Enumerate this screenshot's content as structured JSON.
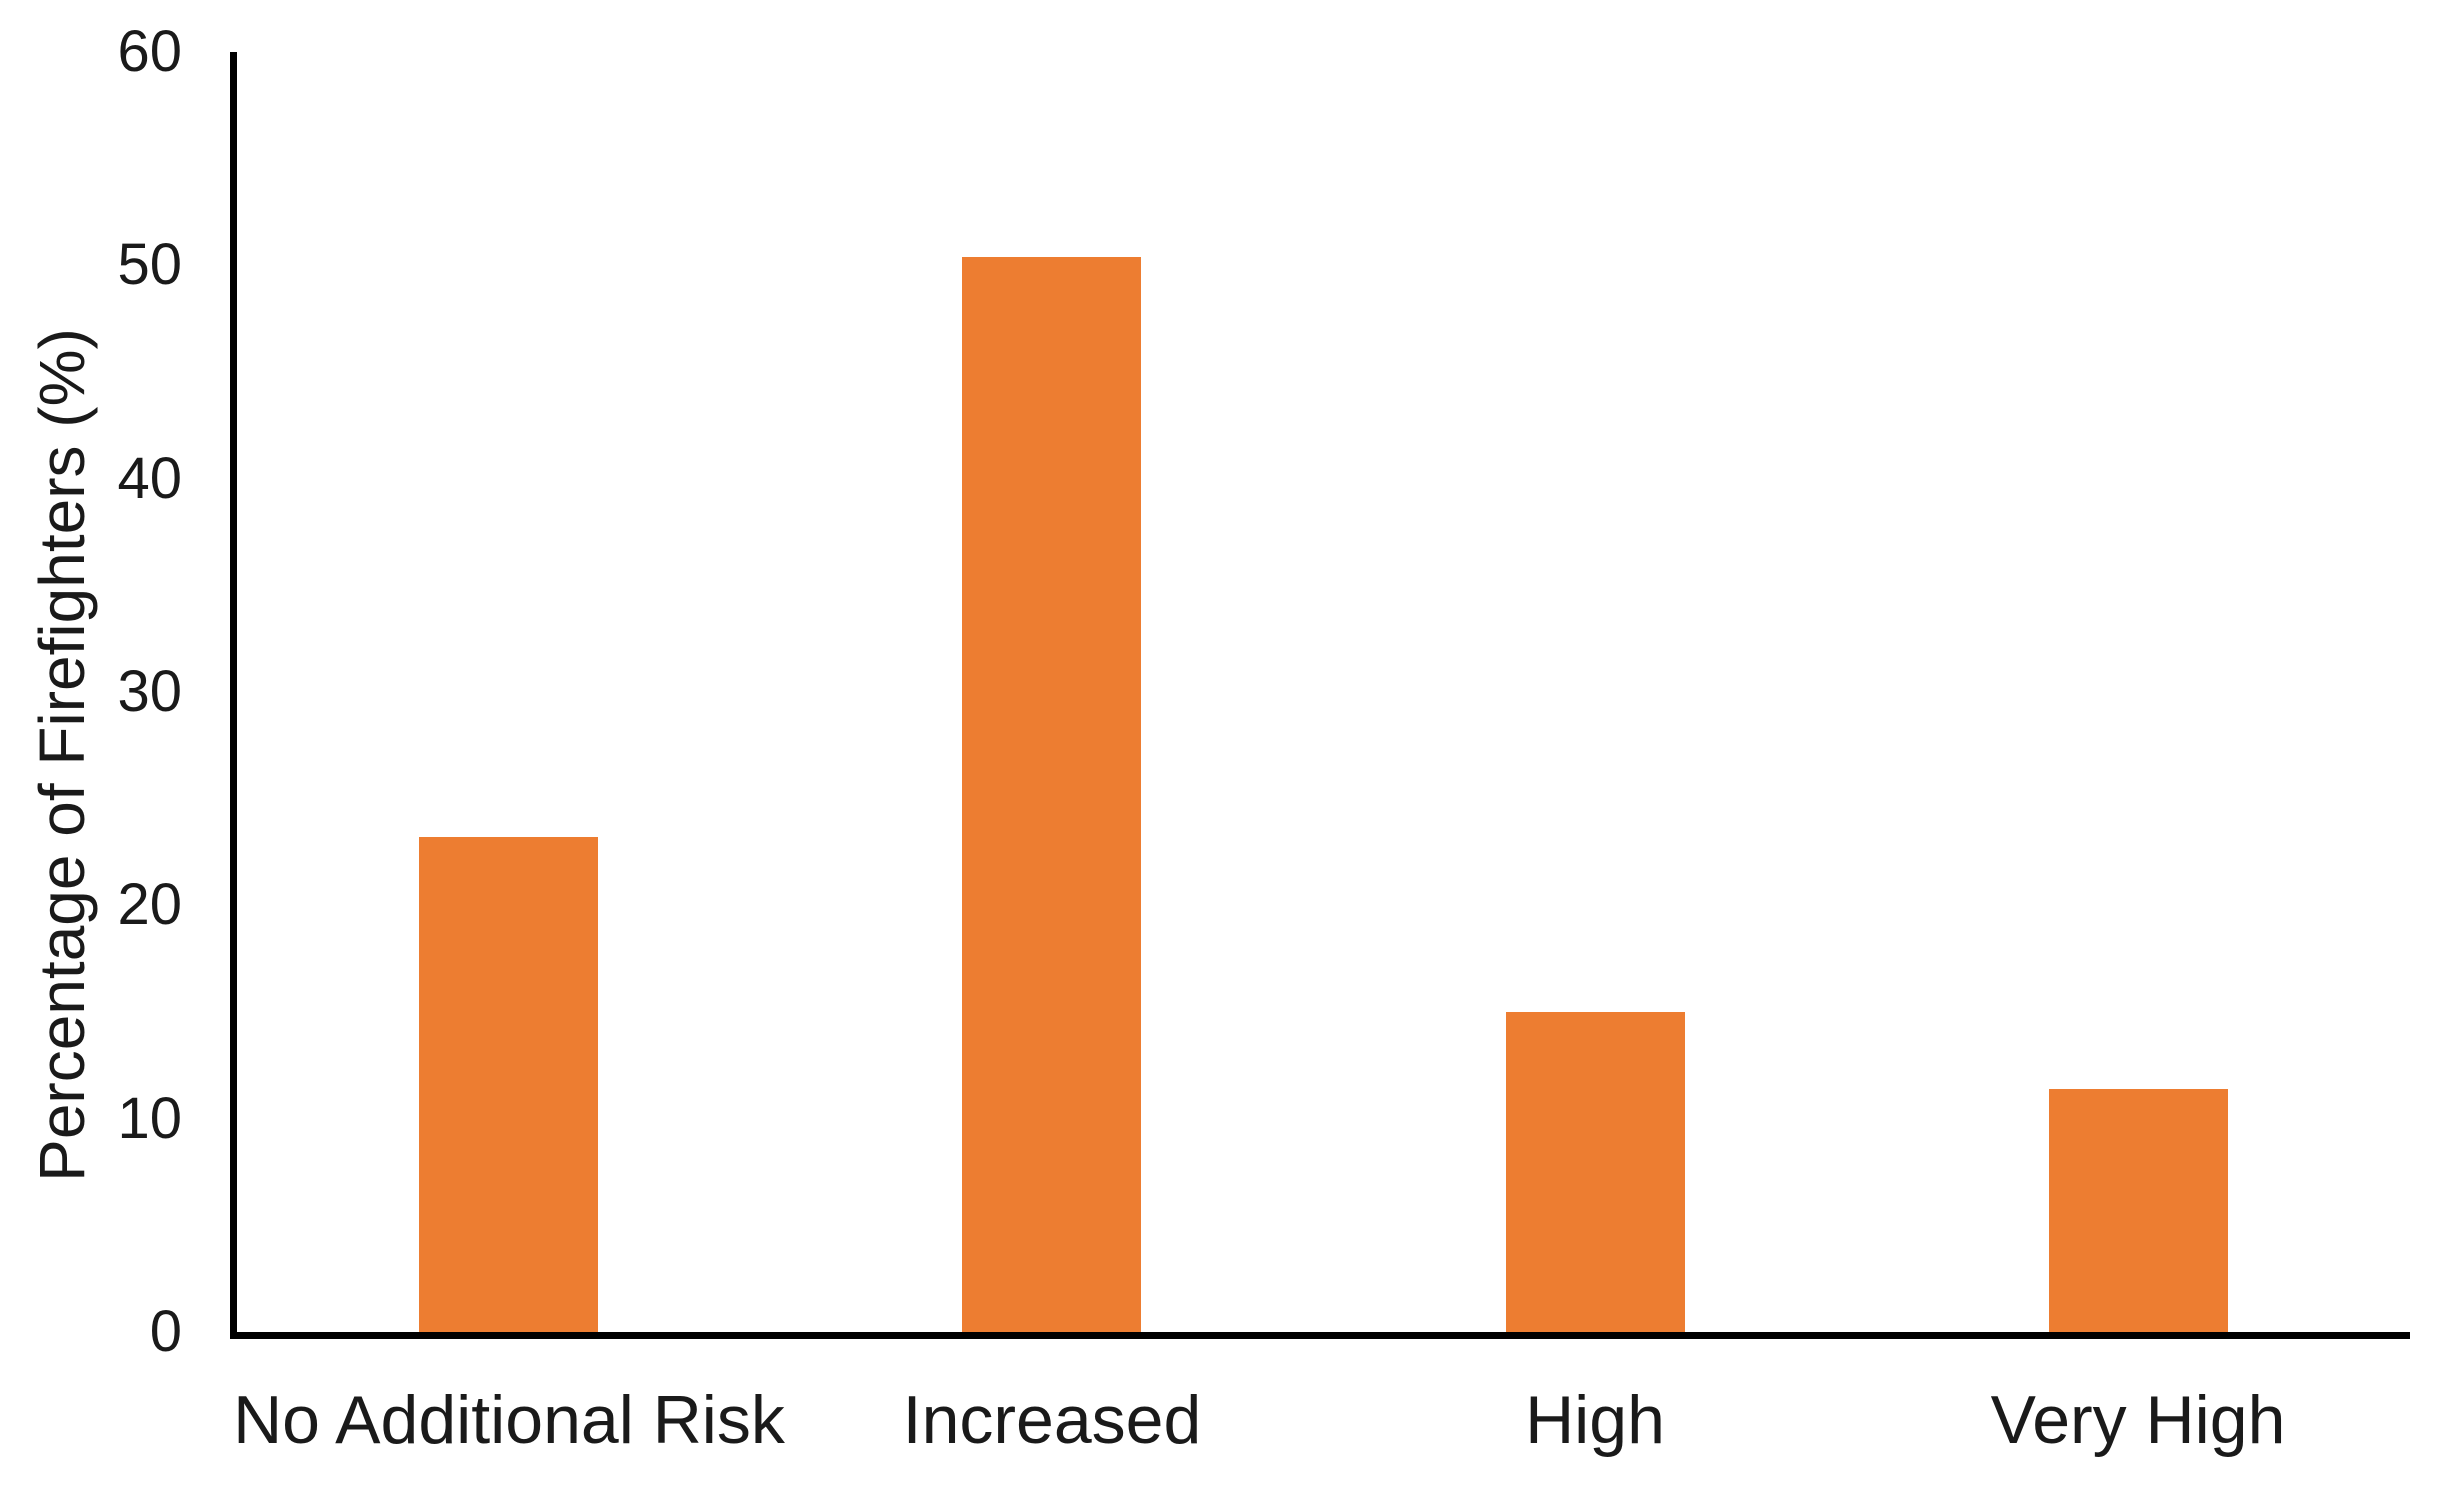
{
  "chart_data": {
    "type": "bar",
    "categories": [
      "No Additional Risk",
      "Increased",
      "High",
      "Very High"
    ],
    "values": [
      23.2,
      50.4,
      15.0,
      11.4
    ],
    "title": "",
    "xlabel": "",
    "ylabel": "Percentage of Firefighters (%)",
    "ylim": [
      0,
      60
    ],
    "yticks": [
      0,
      10,
      20,
      30,
      40,
      50,
      60
    ],
    "grid": false,
    "legend": false,
    "bar_color": "#ED7D31",
    "axis_color": "#000000",
    "text_color": "#1A1A1A"
  }
}
